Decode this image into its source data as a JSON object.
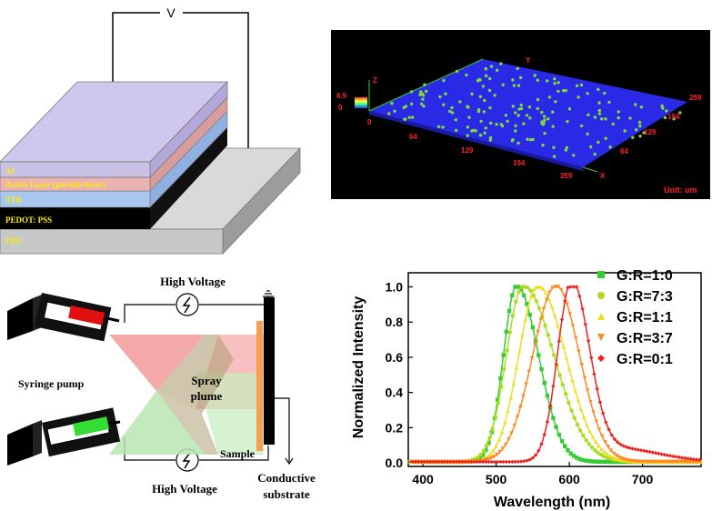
{
  "device": {
    "voltage_label": "V",
    "layers": [
      {
        "label": "Al",
        "color": "#c9c2e6"
      },
      {
        "label": "Active Layer (particle-layer)",
        "color": "#e9b3b3"
      },
      {
        "label": "TFB",
        "color": "#a9c6ef"
      },
      {
        "label": "PEDOT: PSS",
        "color": "#000000"
      },
      {
        "label": "ITO",
        "color": "#c8c8c8"
      }
    ]
  },
  "afm": {
    "z_axis": "Z",
    "y_axis": "Y",
    "x_axis": "X",
    "z_max": "6.9",
    "z_min": "0",
    "origin": "0",
    "x_ticks": [
      "64",
      "129",
      "194",
      "259"
    ],
    "y_ticks": [
      "64",
      "129",
      "194",
      "259"
    ],
    "unit": "Unit: um",
    "colors": {
      "surface": "#2929e0",
      "particles": "#7ddc3a",
      "labels": "#ff2020"
    }
  },
  "spray": {
    "high_voltage_top": "High Voltage",
    "high_voltage_bottom": "High Voltage",
    "syringe_pump": "Syringe pump",
    "spray_plume_1": "Spray",
    "spray_plume_2": "plume",
    "sample": "Sample",
    "conductive_1": "Conductive",
    "conductive_2": "substrate"
  },
  "chart_data": {
    "type": "line",
    "xlabel": "Wavelength (nm)",
    "ylabel": "Normalized Intensity",
    "xlim": [
      380,
      780
    ],
    "ylim": [
      -0.02,
      1.08
    ],
    "xticks": [
      400,
      500,
      600,
      700
    ],
    "yticks": [
      0.0,
      0.2,
      0.4,
      0.6,
      0.8,
      1.0
    ],
    "legend_position": "top-right",
    "series": [
      {
        "name": "G:R=1:0",
        "color": "#33cc33",
        "marker": "square",
        "peaks": [
          {
            "center": 528,
            "sigma_left": 18,
            "sigma_right": 30,
            "amp": 1.0
          }
        ]
      },
      {
        "name": "G:R=7:3",
        "color": "#aadd22",
        "marker": "circle",
        "peaks": [
          {
            "center": 537,
            "sigma_left": 23,
            "sigma_right": 42,
            "amp": 1.0
          }
        ]
      },
      {
        "name": "G:R=1:1",
        "color": "#eedd22",
        "marker": "triangle-up",
        "peaks": [
          {
            "center": 557,
            "sigma_left": 26,
            "sigma_right": 38,
            "amp": 1.0
          }
        ]
      },
      {
        "name": "G:R=3:7",
        "color": "#ff8822",
        "marker": "triangle-down",
        "peaks": [
          {
            "center": 582,
            "sigma_left": 32,
            "sigma_right": 32,
            "amp": 1.0
          }
        ]
      },
      {
        "name": "G:R=0:1",
        "color": "#ee2222",
        "marker": "diamond",
        "peaks": [
          {
            "center": 603,
            "sigma_left": 19,
            "sigma_right": 24,
            "amp": 1.0
          },
          {
            "center": 660,
            "sigma_left": 40,
            "sigma_right": 60,
            "amp": 0.08
          }
        ]
      }
    ]
  }
}
